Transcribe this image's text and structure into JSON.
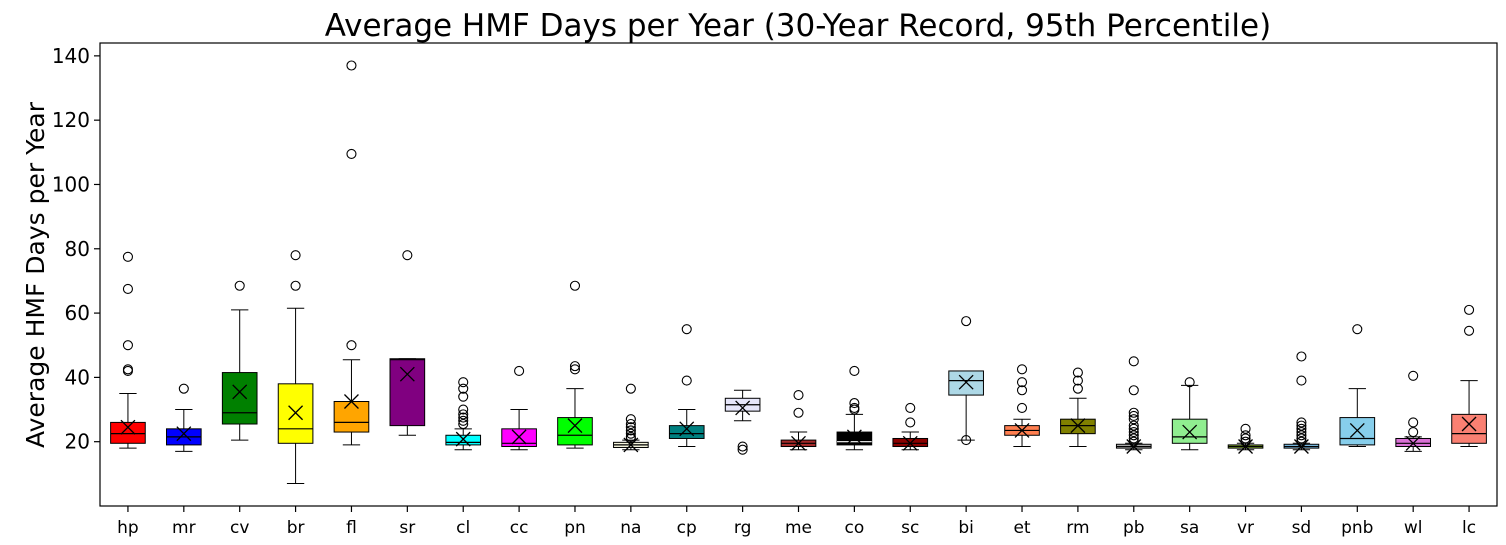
{
  "chart_data": {
    "type": "box",
    "title": "Average HMF Days per Year (30-Year Record, 95th Percentile)",
    "xlabel": "",
    "ylabel": "Average HMF Days per Year",
    "ylim": [
      0,
      144
    ],
    "yticks": [
      20,
      40,
      60,
      80,
      100,
      120,
      140
    ],
    "grid": false,
    "legend": "none",
    "mean_marker": "x",
    "categories": [
      "hp",
      "mr",
      "cv",
      "br",
      "fl",
      "sr",
      "cl",
      "cc",
      "pn",
      "na",
      "cp",
      "rg",
      "me",
      "co",
      "sc",
      "bi",
      "et",
      "rm",
      "pb",
      "sa",
      "vr",
      "sd",
      "pnb",
      "wl",
      "lc"
    ],
    "series": [
      {
        "label": "hp",
        "color": "#ff0000",
        "whislo": 18,
        "q1": 19.5,
        "median": 22.5,
        "q3": 26,
        "whishi": 35,
        "mean": 24.5,
        "fliers": [
          42,
          42.5,
          50,
          67.5,
          77.5
        ]
      },
      {
        "label": "mr",
        "color": "#0000ff",
        "whislo": 17,
        "q1": 19,
        "median": 21.5,
        "q3": 24,
        "whishi": 30,
        "mean": 22.5,
        "fliers": [
          36.5
        ]
      },
      {
        "label": "cv",
        "color": "#008000",
        "whislo": 20.5,
        "q1": 25.5,
        "median": 29,
        "q3": 41.5,
        "whishi": 61,
        "mean": 35.5,
        "fliers": [
          68.5
        ]
      },
      {
        "label": "br",
        "color": "#ffff00",
        "whislo": 7,
        "q1": 19.5,
        "median": 24,
        "q3": 38,
        "whishi": 61.5,
        "mean": 29,
        "fliers": [
          68.5,
          78
        ]
      },
      {
        "label": "fl",
        "color": "#ffa500",
        "whislo": 19,
        "q1": 23,
        "median": 26,
        "q3": 32.5,
        "whishi": 45.5,
        "mean": 32.5,
        "fliers": [
          50,
          109.5,
          137
        ]
      },
      {
        "label": "sr",
        "color": "#800080",
        "whislo": 22,
        "q1": 25,
        "median": 45.5,
        "q3": 45.8,
        "whishi": 45.8,
        "mean": 41,
        "fliers": [
          78
        ]
      },
      {
        "label": "cl",
        "color": "#00ffff",
        "whislo": 17.5,
        "q1": 19,
        "median": 19.8,
        "q3": 22,
        "whishi": 24,
        "mean": 20.8,
        "fliers": [
          25.5,
          26.5,
          27.5,
          28.5,
          30,
          34,
          36.5,
          38.5
        ]
      },
      {
        "label": "cc",
        "color": "#ff00ff",
        "whislo": 17.5,
        "q1": 18.5,
        "median": 19.5,
        "q3": 24,
        "whishi": 30,
        "mean": 21.5,
        "fliers": [
          42
        ]
      },
      {
        "label": "pn",
        "color": "#00ff00",
        "whislo": 18,
        "q1": 19,
        "median": 22,
        "q3": 27.5,
        "whishi": 36.5,
        "mean": 25,
        "fliers": [
          42.5,
          43.5,
          68.5
        ]
      },
      {
        "label": "na",
        "color": "#f5f5dc",
        "whislo": 17.5,
        "q1": 18.2,
        "median": 19,
        "q3": 19.8,
        "whishi": 20.5,
        "mean": 19,
        "fliers": [
          21,
          21.5,
          22.5,
          23.5,
          24.5,
          25.5,
          27,
          36.5
        ]
      },
      {
        "label": "cp",
        "color": "#008080",
        "whislo": 18.5,
        "q1": 21,
        "median": 22.5,
        "q3": 25,
        "whishi": 30,
        "mean": 24,
        "fliers": [
          39,
          55
        ]
      },
      {
        "label": "rg",
        "color": "#e6e6fa",
        "whislo": 26.5,
        "q1": 29.5,
        "median": 31.5,
        "q3": 33.5,
        "whishi": 36,
        "mean": 30.5,
        "fliers": [
          17.5,
          18.5
        ]
      },
      {
        "label": "me",
        "color": "#a52a2a",
        "whislo": 17.5,
        "q1": 18.5,
        "median": 19.5,
        "q3": 20.5,
        "whishi": 23,
        "mean": 19.5,
        "fliers": [
          29,
          34.5
        ]
      },
      {
        "label": "co",
        "color": "#000000",
        "whislo": 17.5,
        "q1": 19,
        "median": 20,
        "q3": 23,
        "whishi": 28.5,
        "mean": 21.5,
        "fliers": [
          30,
          30.5,
          32,
          42
        ]
      },
      {
        "label": "sc",
        "color": "#8b0000",
        "whislo": 17.5,
        "q1": 18.5,
        "median": 19.5,
        "q3": 21,
        "whishi": 23,
        "mean": 19.5,
        "fliers": [
          26,
          30.5
        ]
      },
      {
        "label": "bi",
        "color": "#add8e6",
        "whislo": 20.5,
        "q1": 34.5,
        "median": 39,
        "q3": 42,
        "whishi": 42,
        "mean": 38.5,
        "fliers": [
          20.5,
          57.5
        ]
      },
      {
        "label": "et",
        "color": "#ff7f50",
        "whislo": 18.5,
        "q1": 22,
        "median": 23.5,
        "q3": 25,
        "whishi": 27,
        "mean": 23.5,
        "fliers": [
          30.5,
          36,
          38.5,
          42.5
        ]
      },
      {
        "label": "rm",
        "color": "#808000",
        "whislo": 18.5,
        "q1": 22.5,
        "median": 25,
        "q3": 27,
        "whishi": 33.5,
        "mean": 25,
        "fliers": [
          36.5,
          39,
          41.5
        ]
      },
      {
        "label": "pb",
        "color": "#c0c0c0",
        "whislo": 17.5,
        "q1": 18,
        "median": 18.5,
        "q3": 19.2,
        "whishi": 19.5,
        "mean": 18.5,
        "fliers": [
          20,
          21,
          22,
          23,
          24,
          25,
          27,
          28,
          29,
          36,
          45
        ]
      },
      {
        "label": "sa",
        "color": "#90ee90",
        "whislo": 17.5,
        "q1": 19.5,
        "median": 21.5,
        "q3": 27,
        "whishi": 37.5,
        "mean": 23,
        "fliers": [
          38.5
        ]
      },
      {
        "label": "vr",
        "color": "#9acd32",
        "whislo": 17.5,
        "q1": 18,
        "median": 18.5,
        "q3": 19,
        "whishi": 19.5,
        "mean": 18.5,
        "fliers": [
          20,
          21,
          22,
          24
        ]
      },
      {
        "label": "sd",
        "color": "#87cefa",
        "whislo": 17.5,
        "q1": 18,
        "median": 18.5,
        "q3": 19.2,
        "whishi": 19.5,
        "mean": 18.5,
        "fliers": [
          20,
          21,
          22,
          23,
          24,
          25,
          26,
          39,
          46.5
        ]
      },
      {
        "label": "pnb",
        "color": "#87ceeb",
        "whislo": 18.5,
        "q1": 19,
        "median": 21,
        "q3": 27.5,
        "whishi": 36.5,
        "mean": 23.5,
        "fliers": [
          55
        ]
      },
      {
        "label": "wl",
        "color": "#da70d6",
        "whislo": 17,
        "q1": 18.5,
        "median": 19.5,
        "q3": 21,
        "whishi": 21.5,
        "mean": 19.5,
        "fliers": [
          23,
          26,
          40.5
        ]
      },
      {
        "label": "lc",
        "color": "#fa8072",
        "whislo": 18.5,
        "q1": 19.5,
        "median": 22.5,
        "q3": 28.5,
        "whishi": 39,
        "mean": 25.5,
        "fliers": [
          54.5,
          61
        ]
      }
    ]
  }
}
